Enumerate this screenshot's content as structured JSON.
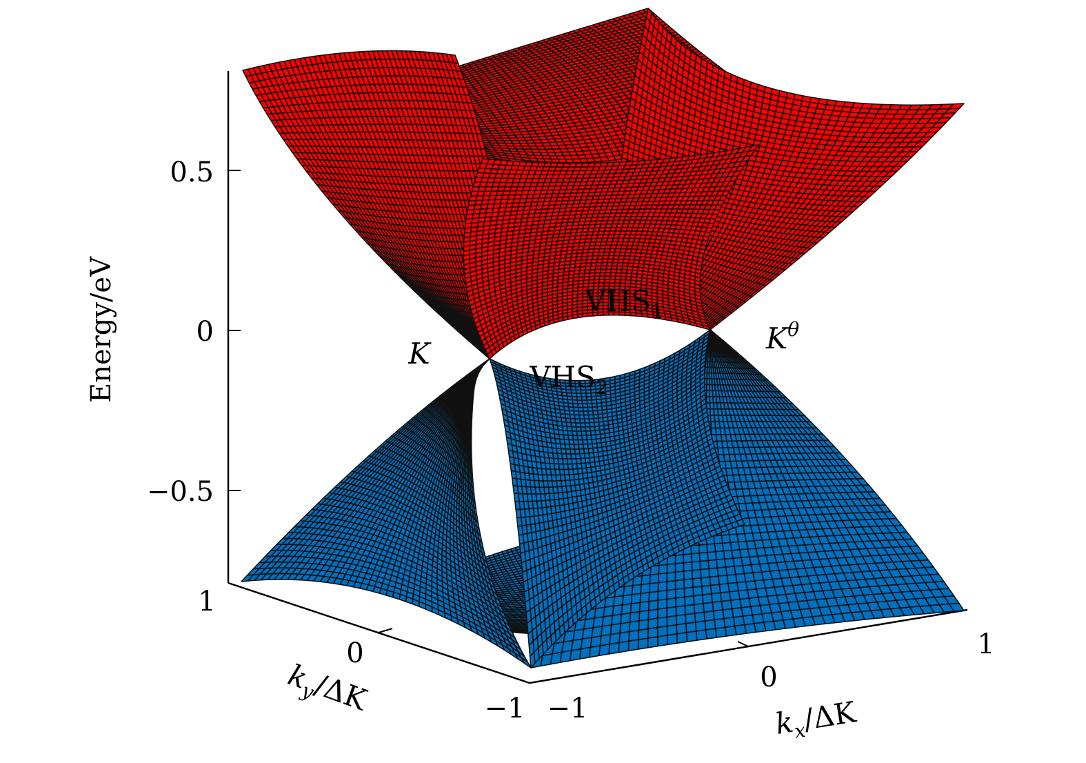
{
  "chart_data": {
    "type": "surface",
    "title": "",
    "xlabel": "k_x/ΔK",
    "ylabel": "k_y/ΔK",
    "zlabel": "Energy/eV",
    "axis_label_parts": {
      "z": "Energy/eV",
      "x_var": "k",
      "x_sub": "x",
      "x_rest": "/ΔK",
      "y_var": "k",
      "y_sub": "y",
      "y_rest": "/ΔK"
    },
    "x_range": [
      -1,
      1
    ],
    "y_range": [
      -1,
      1
    ],
    "z_range": [
      -0.8,
      0.8
    ],
    "z_ticks": [
      "0.5",
      "0",
      "−0.5"
    ],
    "x_ticks": [
      "−1",
      "0",
      "1"
    ],
    "y_ticks": [
      "1",
      "0",
      "−1"
    ],
    "series": [
      {
        "name": "",
        "band": "conduction",
        "color": "#ff0000"
      },
      {
        "name": "",
        "band": "valence",
        "color": "#0070c0"
      }
    ],
    "annotations": [
      {
        "label": "K",
        "x": -0.5,
        "y": 0,
        "z": -0.1
      },
      {
        "label": "K",
        "sup": "θ",
        "x": 0.5,
        "y": 0,
        "z": 0
      },
      {
        "label": "VHS",
        "sub": "1",
        "x": 0,
        "y": 0,
        "z": 0.1
      },
      {
        "label": "VHS",
        "sub": "2",
        "x": 0,
        "y": 0,
        "z": -0.1
      }
    ]
  }
}
